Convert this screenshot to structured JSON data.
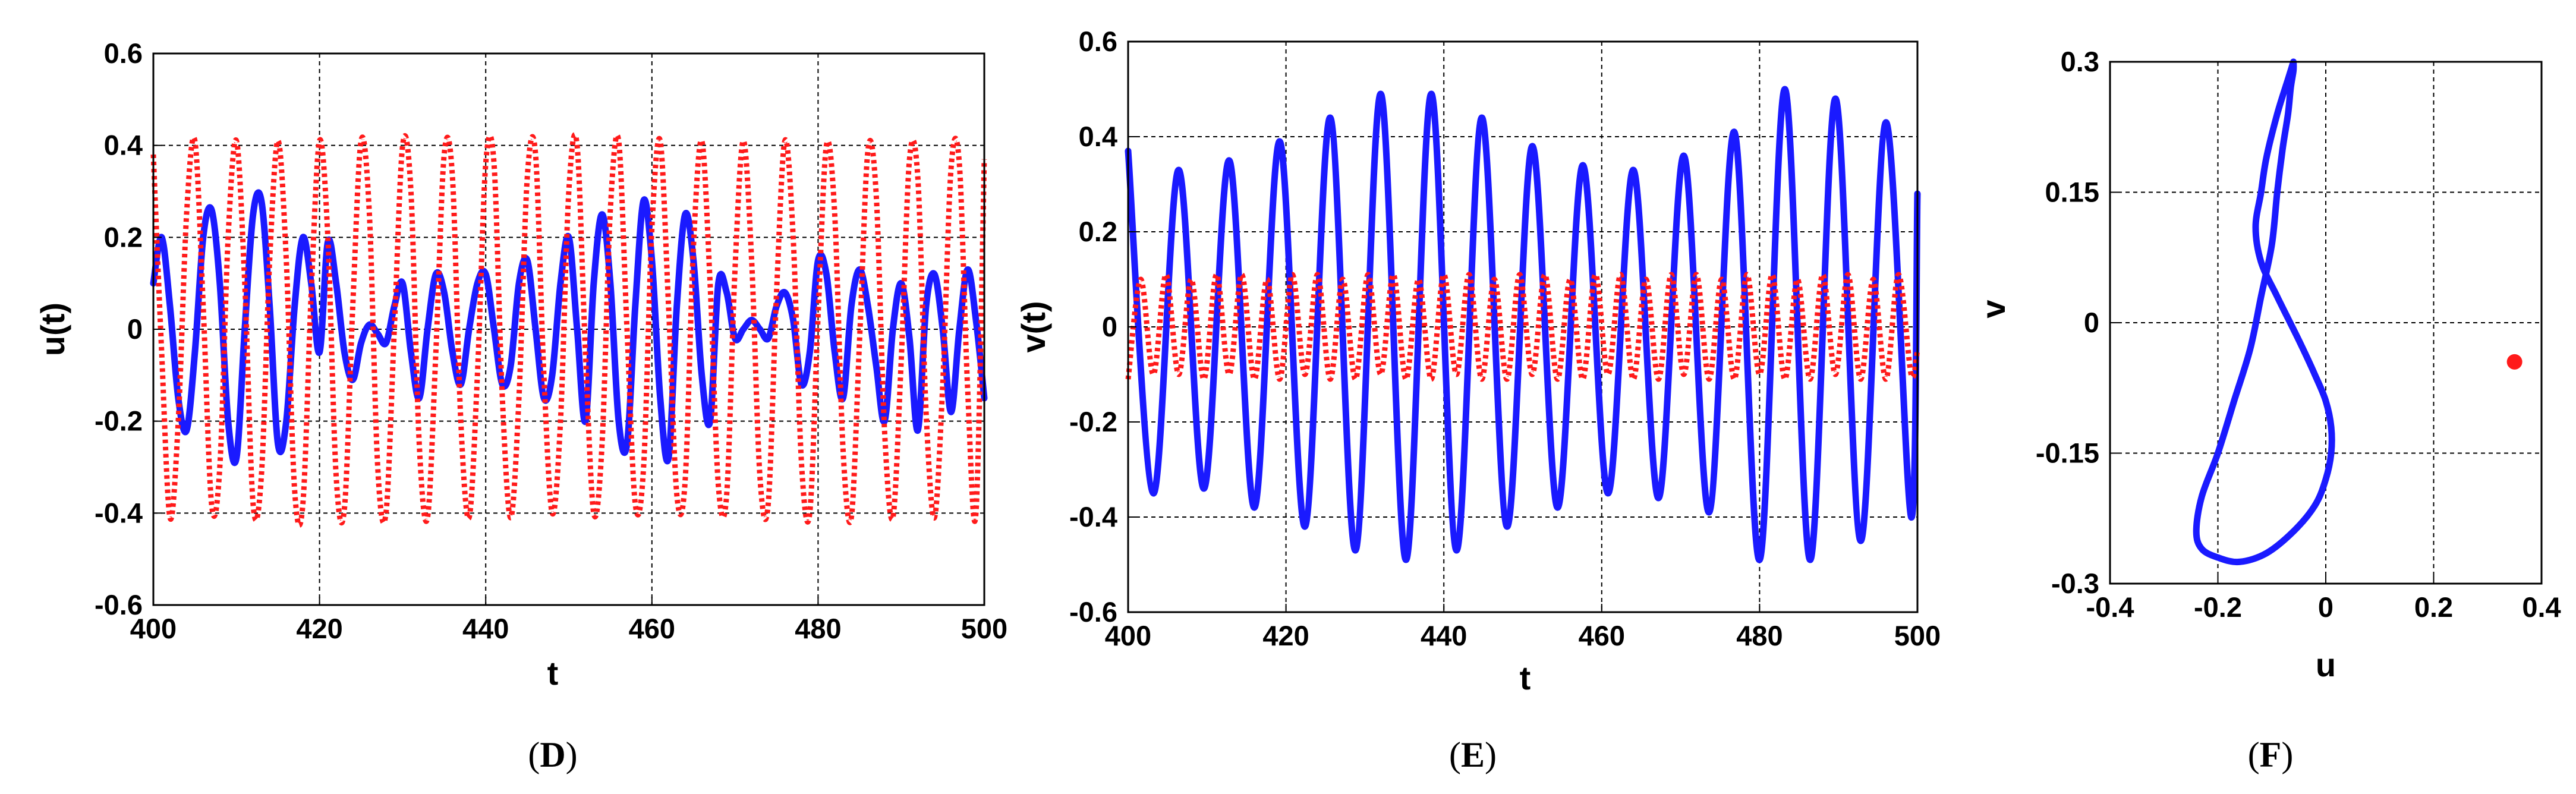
{
  "chart_data": [
    {
      "type": "line",
      "panel_label": "D",
      "xlabel": "t",
      "ylabel": "u(t)",
      "xlim": [
        400,
        500
      ],
      "ylim": [
        -0.6,
        0.6
      ],
      "xticks": [
        "400",
        "420",
        "440",
        "460",
        "480",
        "500"
      ],
      "yticks": [
        "0.6",
        "0.4",
        "0.2",
        "0",
        "-0.2",
        "-0.4",
        "-0.6"
      ],
      "grid": true,
      "colors": {
        "solid": "#1a1aff",
        "dotted": "#ff1a1a"
      },
      "series": [
        {
          "name": "solid",
          "style": "solid",
          "color": "#1a1aff",
          "t": [
            400,
            401,
            402,
            403,
            404,
            405,
            406,
            407,
            408,
            409,
            410,
            411,
            412,
            413,
            414,
            415,
            416,
            417,
            418,
            419,
            420,
            421,
            422,
            423,
            424,
            425,
            426,
            427,
            428,
            429,
            430,
            431,
            432,
            433,
            434,
            435,
            436,
            437,
            438,
            439,
            440,
            441,
            442,
            443,
            444,
            445,
            446,
            447,
            448,
            449,
            450,
            451,
            452,
            453,
            454,
            455,
            456,
            457,
            458,
            459,
            460,
            461,
            462,
            463,
            464,
            465,
            466,
            467,
            468,
            469,
            470,
            471,
            472,
            473,
            474,
            475,
            476,
            477,
            478,
            479,
            480,
            481,
            482,
            483,
            484,
            485,
            486,
            487,
            488,
            489,
            490,
            491,
            492,
            493,
            494,
            495,
            496,
            497,
            498,
            499,
            500
          ],
          "values": [
            0.1,
            0.2,
            0.05,
            -0.15,
            -0.22,
            -0.05,
            0.2,
            0.26,
            0.1,
            -0.2,
            -0.28,
            0.0,
            0.25,
            0.28,
            0.05,
            -0.25,
            -0.2,
            0.05,
            0.2,
            0.1,
            -0.05,
            0.19,
            0.1,
            -0.05,
            -0.11,
            -0.03,
            0.01,
            -0.01,
            -0.03,
            0.05,
            0.1,
            -0.05,
            -0.15,
            0.0,
            0.12,
            0.08,
            -0.05,
            -0.12,
            0.0,
            0.1,
            0.12,
            0.0,
            -0.12,
            -0.08,
            0.1,
            0.15,
            0.0,
            -0.15,
            -0.1,
            0.1,
            0.2,
            0.0,
            -0.2,
            0.1,
            0.25,
            0.1,
            -0.2,
            -0.25,
            0.05,
            0.28,
            0.15,
            -0.15,
            -0.28,
            0.05,
            0.25,
            0.15,
            -0.1,
            -0.2,
            0.1,
            0.08,
            -0.02,
            0.0,
            0.02,
            0.0,
            -0.02,
            0.05,
            0.08,
            0.02,
            -0.12,
            -0.05,
            0.15,
            0.12,
            -0.05,
            -0.15,
            0.05,
            0.13,
            0.05,
            -0.08,
            -0.2,
            0.0,
            0.1,
            -0.02,
            -0.22,
            0.05,
            0.12,
            0.0,
            -0.18,
            0.0,
            0.13,
            0.02,
            -0.15
          ]
        },
        {
          "name": "dotted",
          "style": "dotted",
          "color": "#ff1a1a",
          "t": [
            400,
            401,
            402,
            403,
            404,
            405,
            406,
            407,
            408,
            409,
            410,
            411,
            412,
            413,
            414,
            415,
            416,
            417,
            418,
            419,
            420,
            421,
            422,
            423,
            424,
            425,
            426,
            427,
            428,
            429,
            430,
            431,
            432,
            433,
            434,
            435,
            436,
            437,
            438,
            439,
            440,
            441,
            442,
            443,
            444,
            445,
            446,
            447,
            448,
            449,
            450,
            451,
            452,
            453,
            454,
            455,
            456,
            457,
            458,
            459,
            460,
            461,
            462,
            463,
            464,
            465,
            466,
            467,
            468,
            469,
            470,
            471,
            472,
            473,
            474,
            475,
            476,
            477,
            478,
            479,
            480,
            481,
            482,
            483,
            484,
            485,
            486,
            487,
            488,
            489,
            490,
            491,
            492,
            493,
            494,
            495,
            496,
            497,
            498,
            499,
            500
          ],
          "values": [
            0.38,
            -0.05,
            -0.41,
            -0.2,
            0.25,
            0.41,
            0.05,
            -0.38,
            -0.3,
            0.2,
            0.41,
            0.1,
            -0.38,
            -0.32,
            0.15,
            0.41,
            0.15,
            -0.35,
            -0.38,
            0.08,
            0.41,
            0.2,
            -0.32,
            -0.39,
            0.05,
            0.41,
            0.25,
            -0.3,
            -0.4,
            0.0,
            0.4,
            0.3,
            -0.25,
            -0.41,
            -0.05,
            0.38,
            0.33,
            -0.2,
            -0.41,
            -0.1,
            0.36,
            0.36,
            -0.15,
            -0.41,
            -0.15,
            0.33,
            0.38,
            -0.1,
            -0.4,
            -0.2,
            0.3,
            0.4,
            -0.05,
            -0.4,
            -0.25,
            0.26,
            0.41,
            0.0,
            -0.38,
            -0.3,
            0.22,
            0.41,
            0.05,
            -0.36,
            -0.33,
            0.18,
            0.41,
            0.1,
            -0.34,
            -0.36,
            0.13,
            0.41,
            0.15,
            -0.32,
            -0.38,
            0.08,
            0.41,
            0.2,
            -0.29,
            -0.4,
            0.03,
            0.4,
            0.25,
            -0.26,
            -0.41,
            -0.02,
            0.39,
            0.29,
            -0.22,
            -0.41,
            -0.07,
            0.37,
            0.33,
            -0.18,
            -0.41,
            -0.12,
            0.35,
            0.36,
            -0.13,
            -0.4,
            0.37
          ]
        }
      ]
    },
    {
      "type": "line",
      "panel_label": "E",
      "xlabel": "t",
      "ylabel": "v(t)",
      "xlim": [
        400,
        500
      ],
      "ylim": [
        -0.6,
        0.6
      ],
      "xticks": [
        "400",
        "420",
        "440",
        "460",
        "480",
        "500"
      ],
      "yticks": [
        "0.6",
        "0.4",
        "0.2",
        "0",
        "-0.2",
        "-0.4",
        "-0.6"
      ],
      "grid": true,
      "series": [
        {
          "name": "solid",
          "style": "solid",
          "color": "#1a1aff",
          "t": [
            400.0,
            403.2,
            406.4,
            409.6,
            412.8,
            416.0,
            419.2,
            422.4,
            425.6,
            428.8,
            432.0,
            435.2,
            438.4,
            441.6,
            444.8,
            448.0,
            451.2,
            454.4,
            457.6,
            460.8,
            464.0,
            467.2,
            470.4,
            473.6,
            476.8,
            480.0,
            483.2,
            486.4,
            489.6,
            492.8,
            496.0,
            499.2,
            500.0
          ],
          "values": [
            0.37,
            -0.35,
            0.33,
            -0.34,
            0.35,
            -0.38,
            0.39,
            -0.42,
            0.44,
            -0.47,
            0.49,
            -0.49,
            0.49,
            -0.47,
            0.44,
            -0.42,
            0.38,
            -0.38,
            0.34,
            -0.35,
            0.33,
            -0.36,
            0.36,
            -0.39,
            0.41,
            -0.49,
            0.5,
            -0.49,
            0.48,
            -0.45,
            0.43,
            -0.4,
            0.28
          ]
        },
        {
          "name": "dotted",
          "style": "dotted",
          "color": "#ff1a1a",
          "t": [
            400.0,
            401.6,
            403.2,
            404.8,
            406.4,
            408.0,
            409.6,
            411.2,
            412.8,
            414.4,
            416.0,
            417.6,
            419.2,
            420.8,
            422.4,
            424.0,
            425.6,
            427.2,
            428.8,
            430.4,
            432.0,
            433.6,
            435.2,
            436.8,
            438.4,
            440.0,
            441.6,
            443.2,
            444.8,
            446.4,
            448.0,
            449.6,
            451.2,
            452.8,
            454.4,
            456.0,
            457.6,
            459.2,
            460.8,
            462.4,
            464.0,
            465.6,
            467.2,
            468.8,
            470.4,
            472.0,
            473.6,
            475.2,
            476.8,
            478.4,
            480.0,
            481.6,
            483.2,
            484.8,
            486.4,
            488.0,
            489.6,
            491.2,
            492.8,
            494.4,
            496.0,
            497.6,
            499.2,
            500.0
          ],
          "values": [
            -0.11,
            0.1,
            -0.1,
            0.11,
            -0.1,
            0.1,
            -0.11,
            0.11,
            -0.1,
            0.11,
            -0.11,
            0.1,
            -0.11,
            0.11,
            -0.1,
            0.11,
            -0.11,
            0.1,
            -0.11,
            0.11,
            -0.1,
            0.11,
            -0.11,
            0.1,
            -0.11,
            0.11,
            -0.1,
            0.11,
            -0.11,
            0.1,
            -0.11,
            0.11,
            -0.1,
            0.11,
            -0.11,
            0.1,
            -0.11,
            0.11,
            -0.1,
            0.11,
            -0.11,
            0.1,
            -0.11,
            0.11,
            -0.1,
            0.11,
            -0.11,
            0.1,
            -0.11,
            0.11,
            -0.1,
            0.11,
            -0.11,
            0.1,
            -0.11,
            0.11,
            -0.1,
            0.11,
            -0.11,
            0.1,
            -0.11,
            0.11,
            -0.1,
            -0.05
          ]
        }
      ]
    },
    {
      "type": "scatter",
      "panel_label": "F",
      "xlabel": "u",
      "ylabel": "v",
      "xlim": [
        -0.4,
        0.4
      ],
      "ylim": [
        -0.3,
        0.3
      ],
      "xticks": [
        "-0.4",
        "-0.2",
        "0",
        "0.2",
        "0.4"
      ],
      "yticks": [
        "0.3",
        "0.15",
        "0",
        "-0.15",
        "-0.3"
      ],
      "grid": true,
      "series": [
        {
          "name": "orbit",
          "style": "solid",
          "color": "#1a1aff",
          "u": [
            -0.06,
            -0.07,
            -0.09,
            -0.11,
            -0.12,
            -0.13,
            -0.12,
            -0.09,
            -0.05,
            -0.02,
            0.0,
            0.01,
            0.01,
            0.0,
            -0.02,
            -0.06,
            -0.11,
            -0.16,
            -0.2,
            -0.23,
            -0.24,
            -0.23,
            -0.2,
            -0.17,
            -0.14,
            -0.12,
            -0.1,
            -0.09,
            -0.08,
            -0.07,
            -0.065,
            -0.06,
            -0.06
          ],
          "v": [
            0.3,
            0.28,
            0.24,
            0.19,
            0.15,
            0.11,
            0.07,
            0.03,
            -0.02,
            -0.06,
            -0.09,
            -0.12,
            -0.15,
            -0.18,
            -0.21,
            -0.24,
            -0.265,
            -0.275,
            -0.27,
            -0.26,
            -0.24,
            -0.2,
            -0.15,
            -0.09,
            -0.03,
            0.03,
            0.09,
            0.15,
            0.2,
            0.24,
            0.27,
            0.29,
            0.3
          ]
        },
        {
          "name": "fixed-point",
          "style": "marker",
          "color": "#ff1a1a",
          "u": [
            0.35
          ],
          "v": [
            -0.045
          ]
        }
      ]
    }
  ],
  "panel_labels": [
    "D",
    "E",
    "F"
  ]
}
